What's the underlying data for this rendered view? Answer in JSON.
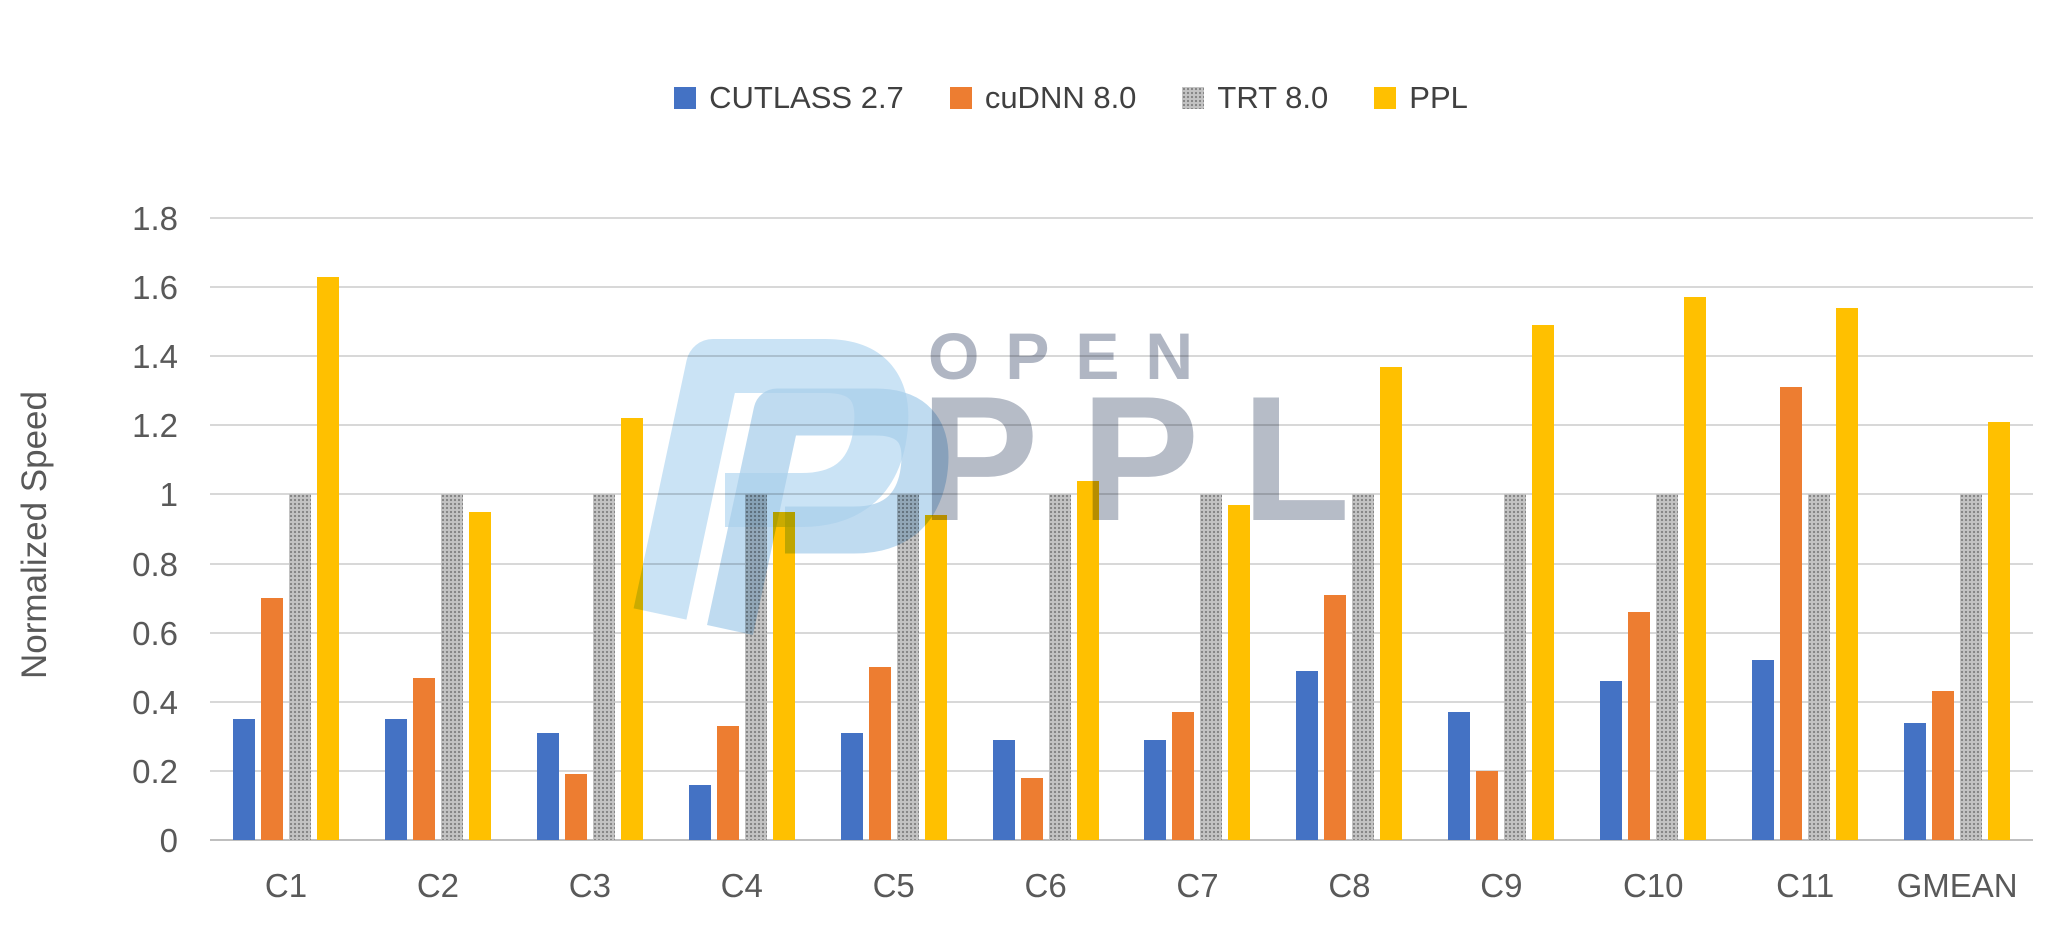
{
  "chart_data": {
    "type": "bar",
    "title": "",
    "xlabel": "",
    "ylabel": "Normalized Speed",
    "ylim": [
      0,
      1.8
    ],
    "ytick_labels": [
      "0",
      "0.2",
      "0.4",
      "0.6",
      "0.8",
      "1",
      "1.2",
      "1.4",
      "1.6",
      "1.8"
    ],
    "grid": true,
    "legend_position": "top-center",
    "categories": [
      "C1",
      "C2",
      "C3",
      "C4",
      "C5",
      "C6",
      "C7",
      "C8",
      "C9",
      "C10",
      "C11",
      "GMEAN"
    ],
    "series": [
      {
        "name": "CUTLASS 2.7",
        "color": "#4472C4",
        "values": [
          0.35,
          0.35,
          0.31,
          0.16,
          0.31,
          0.29,
          0.29,
          0.49,
          0.37,
          0.46,
          0.52,
          0.34
        ]
      },
      {
        "name": "cuDNN 8.0",
        "color": "#ED7D31",
        "values": [
          0.7,
          0.47,
          0.19,
          0.33,
          0.5,
          0.18,
          0.37,
          0.71,
          0.2,
          0.66,
          1.31,
          0.43
        ]
      },
      {
        "name": "TRT 8.0",
        "color": "#A5A5A5",
        "values": [
          1.0,
          1.0,
          1.0,
          1.0,
          1.0,
          1.0,
          1.0,
          1.0,
          1.0,
          1.0,
          1.0,
          1.0
        ]
      },
      {
        "name": "PPL",
        "color": "#FFC000",
        "values": [
          1.63,
          0.95,
          1.22,
          0.95,
          0.94,
          1.04,
          0.97,
          1.37,
          1.49,
          1.57,
          1.54,
          1.21
        ]
      }
    ],
    "colors": {
      "gridline": "#D8D8D8",
      "axis_line": "#BFBFBF",
      "tick_text": "#595959",
      "legend_text": "#404040"
    }
  },
  "watermark": {
    "word_top": "OPEN",
    "word_main": "PPL",
    "logo_blue_light": "#C4E0F4",
    "logo_blue_mid": "#A9CFEB",
    "text_gray": "#9AA2B2"
  }
}
